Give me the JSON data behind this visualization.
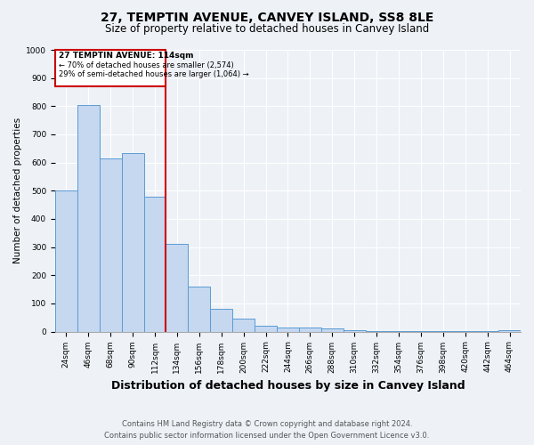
{
  "title": "27, TEMPTIN AVENUE, CANVEY ISLAND, SS8 8LE",
  "subtitle": "Size of property relative to detached houses in Canvey Island",
  "xlabel": "Distribution of detached houses by size in Canvey Island",
  "ylabel": "Number of detached properties",
  "footnote1": "Contains HM Land Registry data © Crown copyright and database right 2024.",
  "footnote2": "Contains public sector information licensed under the Open Government Licence v3.0.",
  "bar_labels": [
    "24sqm",
    "46sqm",
    "68sqm",
    "90sqm",
    "112sqm",
    "134sqm",
    "156sqm",
    "178sqm",
    "200sqm",
    "222sqm",
    "244sqm",
    "266sqm",
    "288sqm",
    "310sqm",
    "332sqm",
    "354sqm",
    "376sqm",
    "398sqm",
    "420sqm",
    "442sqm",
    "464sqm"
  ],
  "bar_values": [
    500,
    805,
    615,
    635,
    480,
    310,
    160,
    80,
    45,
    20,
    15,
    15,
    10,
    5,
    3,
    2,
    2,
    1,
    1,
    1,
    5
  ],
  "bar_color": "#c5d8f0",
  "bar_edgecolor": "#5b9bd5",
  "vline_bar_index": 4,
  "annotation_text1": "27 TEMPTIN AVENUE: 114sqm",
  "annotation_text2": "← 70% of detached houses are smaller (2,574)",
  "annotation_text3": "29% of semi-detached houses are larger (1,064) →",
  "annotation_box_color": "#cc0000",
  "vline_color": "#cc0000",
  "ylim": [
    0,
    1000
  ],
  "yticks": [
    0,
    100,
    200,
    300,
    400,
    500,
    600,
    700,
    800,
    900,
    1000
  ],
  "bg_color": "#eef2f7",
  "grid_color": "#ffffff",
  "title_fontsize": 10,
  "subtitle_fontsize": 8.5,
  "xlabel_fontsize": 9,
  "ylabel_fontsize": 7.5,
  "tick_fontsize": 6.5,
  "footnote_fontsize": 6
}
